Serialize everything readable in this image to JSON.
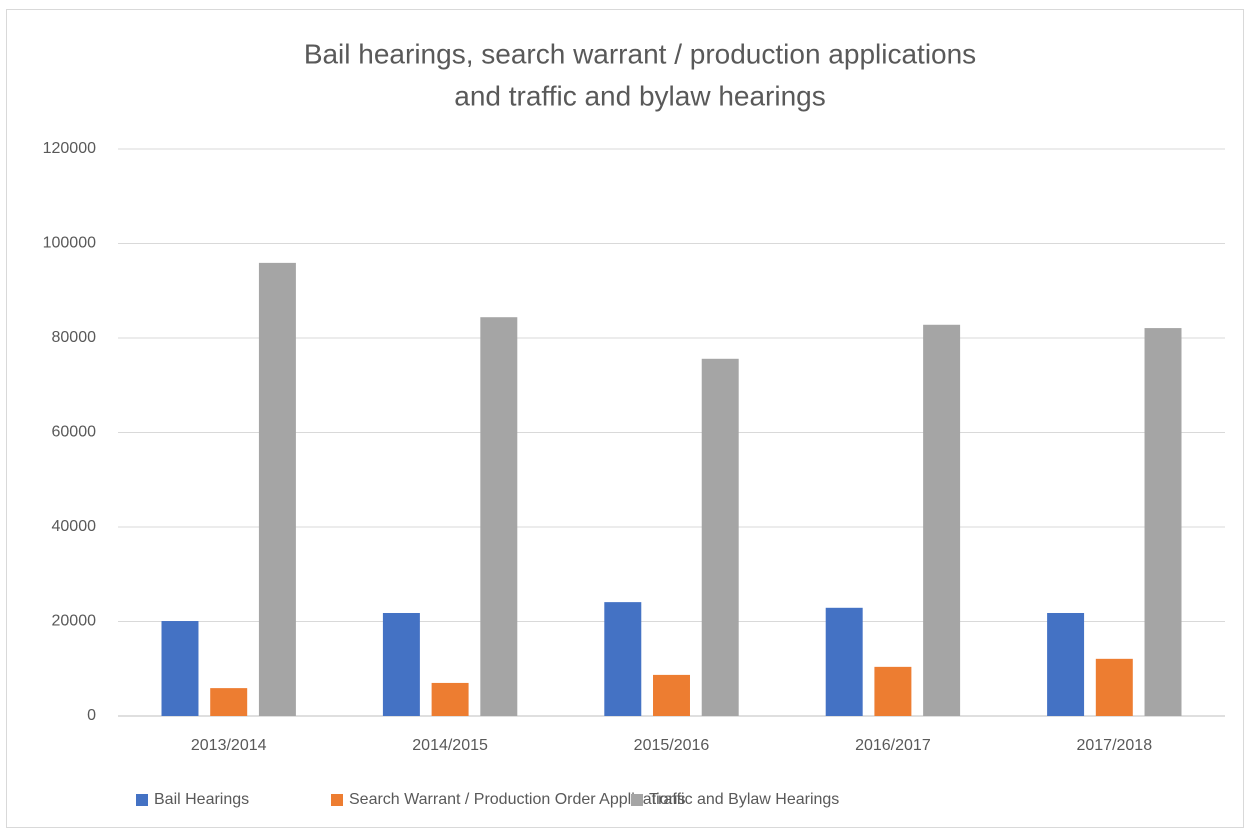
{
  "chart_data": {
    "type": "bar",
    "title": [
      "Bail hearings, search warrant / production applications",
      "and traffic and bylaw hearings"
    ],
    "categories": [
      "2013/2014",
      "2014/2015",
      "2015/2016",
      "2016/2017",
      "2017/2018"
    ],
    "series": [
      {
        "name": "Bail Hearings",
        "color": "#4472c4",
        "values": [
          20100,
          21800,
          24100,
          22900,
          21800
        ]
      },
      {
        "name": "Search Warrant / Production Order Applications",
        "color": "#ed7d31",
        "values": [
          5900,
          7000,
          8700,
          10400,
          12100
        ]
      },
      {
        "name": "Traffic and Bylaw Hearings",
        "color": "#a5a5a5",
        "values": [
          95900,
          84400,
          75600,
          82800,
          82100
        ]
      }
    ],
    "ylim": [
      0,
      120000
    ],
    "yticks": [
      0,
      20000,
      40000,
      60000,
      80000,
      100000,
      120000
    ],
    "grid": true,
    "legend": "bottom"
  }
}
